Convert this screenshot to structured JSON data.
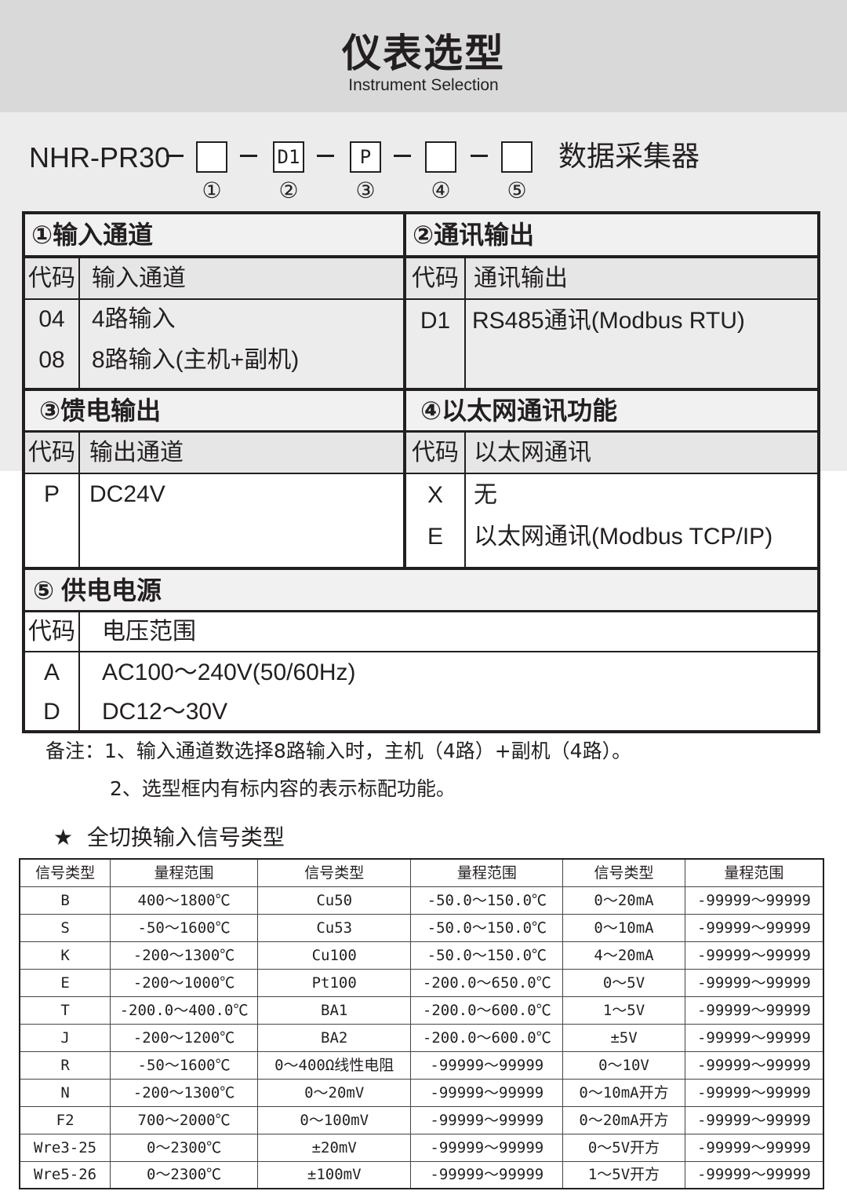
{
  "header": {
    "title": "仪表选型",
    "subtitle": "Instrument Selection"
  },
  "model": {
    "prefix": "NHR-PR30",
    "boxes": [
      "",
      "D1",
      "P",
      "",
      ""
    ],
    "numbers": [
      "①",
      "②",
      "③",
      "④",
      "⑤"
    ],
    "product": "数据采集器"
  },
  "sections": {
    "s1": {
      "title": "①输入通道",
      "code_h": "代码",
      "desc_h": "输入通道",
      "rows": [
        {
          "code": "04",
          "desc": "4路输入"
        },
        {
          "code": "08",
          "desc": "8路输入(主机+副机)"
        }
      ]
    },
    "s2": {
      "title": "②通讯输出",
      "code_h": "代码",
      "desc_h": "通讯输出",
      "rows": [
        {
          "code": "D1",
          "desc": "RS485通讯(Modbus RTU)"
        }
      ]
    },
    "s3": {
      "title": "③馈电输出",
      "code_h": "代码",
      "desc_h": "输出通道",
      "rows": [
        {
          "code": "P",
          "desc": "DC24V"
        }
      ]
    },
    "s4": {
      "title": "④以太网通讯功能",
      "code_h": "代码",
      "desc_h": "以太网通讯",
      "rows": [
        {
          "code": "X",
          "desc": "无"
        },
        {
          "code": "E",
          "desc": "以太网通讯(Modbus TCP/IP)"
        }
      ]
    },
    "s5": {
      "title": "⑤ 供电电源",
      "code_h": "代码",
      "desc_h": "电压范围",
      "rows": [
        {
          "code": "A",
          "desc": "AC100～240V(50/60Hz)"
        },
        {
          "code": "D",
          "desc": "DC12～30V"
        }
      ]
    }
  },
  "notes": [
    "备注：1、输入通道数选择8路输入时，主机（4路）+副机（4路）。",
    "2、选型框内有标内容的表示标配功能。"
  ],
  "signal_table": {
    "title": "★  全切换输入信号类型",
    "headers": [
      "信号类型",
      "量程范围",
      "信号类型",
      "量程范围",
      "信号类型",
      "量程范围"
    ],
    "rows": [
      [
        "B",
        "400～1800℃",
        "Cu50",
        "-50.0～150.0℃",
        "0～20mA",
        "-99999～99999"
      ],
      [
        "S",
        "-50～1600℃",
        "Cu53",
        "-50.0～150.0℃",
        "0～10mA",
        "-99999～99999"
      ],
      [
        "K",
        "-200～1300℃",
        "Cu100",
        "-50.0～150.0℃",
        "4～20mA",
        "-99999～99999"
      ],
      [
        "E",
        "-200～1000℃",
        "Pt100",
        "-200.0～650.0℃",
        "0～5V",
        "-99999～99999"
      ],
      [
        "T",
        "-200.0～400.0℃",
        "BA1",
        "-200.0～600.0℃",
        "1～5V",
        "-99999～99999"
      ],
      [
        "J",
        "-200～1200℃",
        "BA2",
        "-200.0～600.0℃",
        "±5V",
        "-99999～99999"
      ],
      [
        "R",
        "-50～1600℃",
        "0～400Ω线性电阻",
        "-99999～99999",
        "0～10V",
        "-99999～99999"
      ],
      [
        "N",
        "-200～1300℃",
        "0～20mV",
        "-99999～99999",
        "0～10mA开方",
        "-99999～99999"
      ],
      [
        "F2",
        "700～2000℃",
        "0～100mV",
        "-99999～99999",
        "0～20mA开方",
        "-99999～99999"
      ],
      [
        "Wre3-25",
        "0～2300℃",
        "±20mV",
        "-99999～99999",
        "0～5V开方",
        "-99999～99999"
      ],
      [
        "Wre5-26",
        "0～2300℃",
        "±100mV",
        "-99999～99999",
        "1～5V开方",
        "-99999～99999"
      ]
    ]
  }
}
